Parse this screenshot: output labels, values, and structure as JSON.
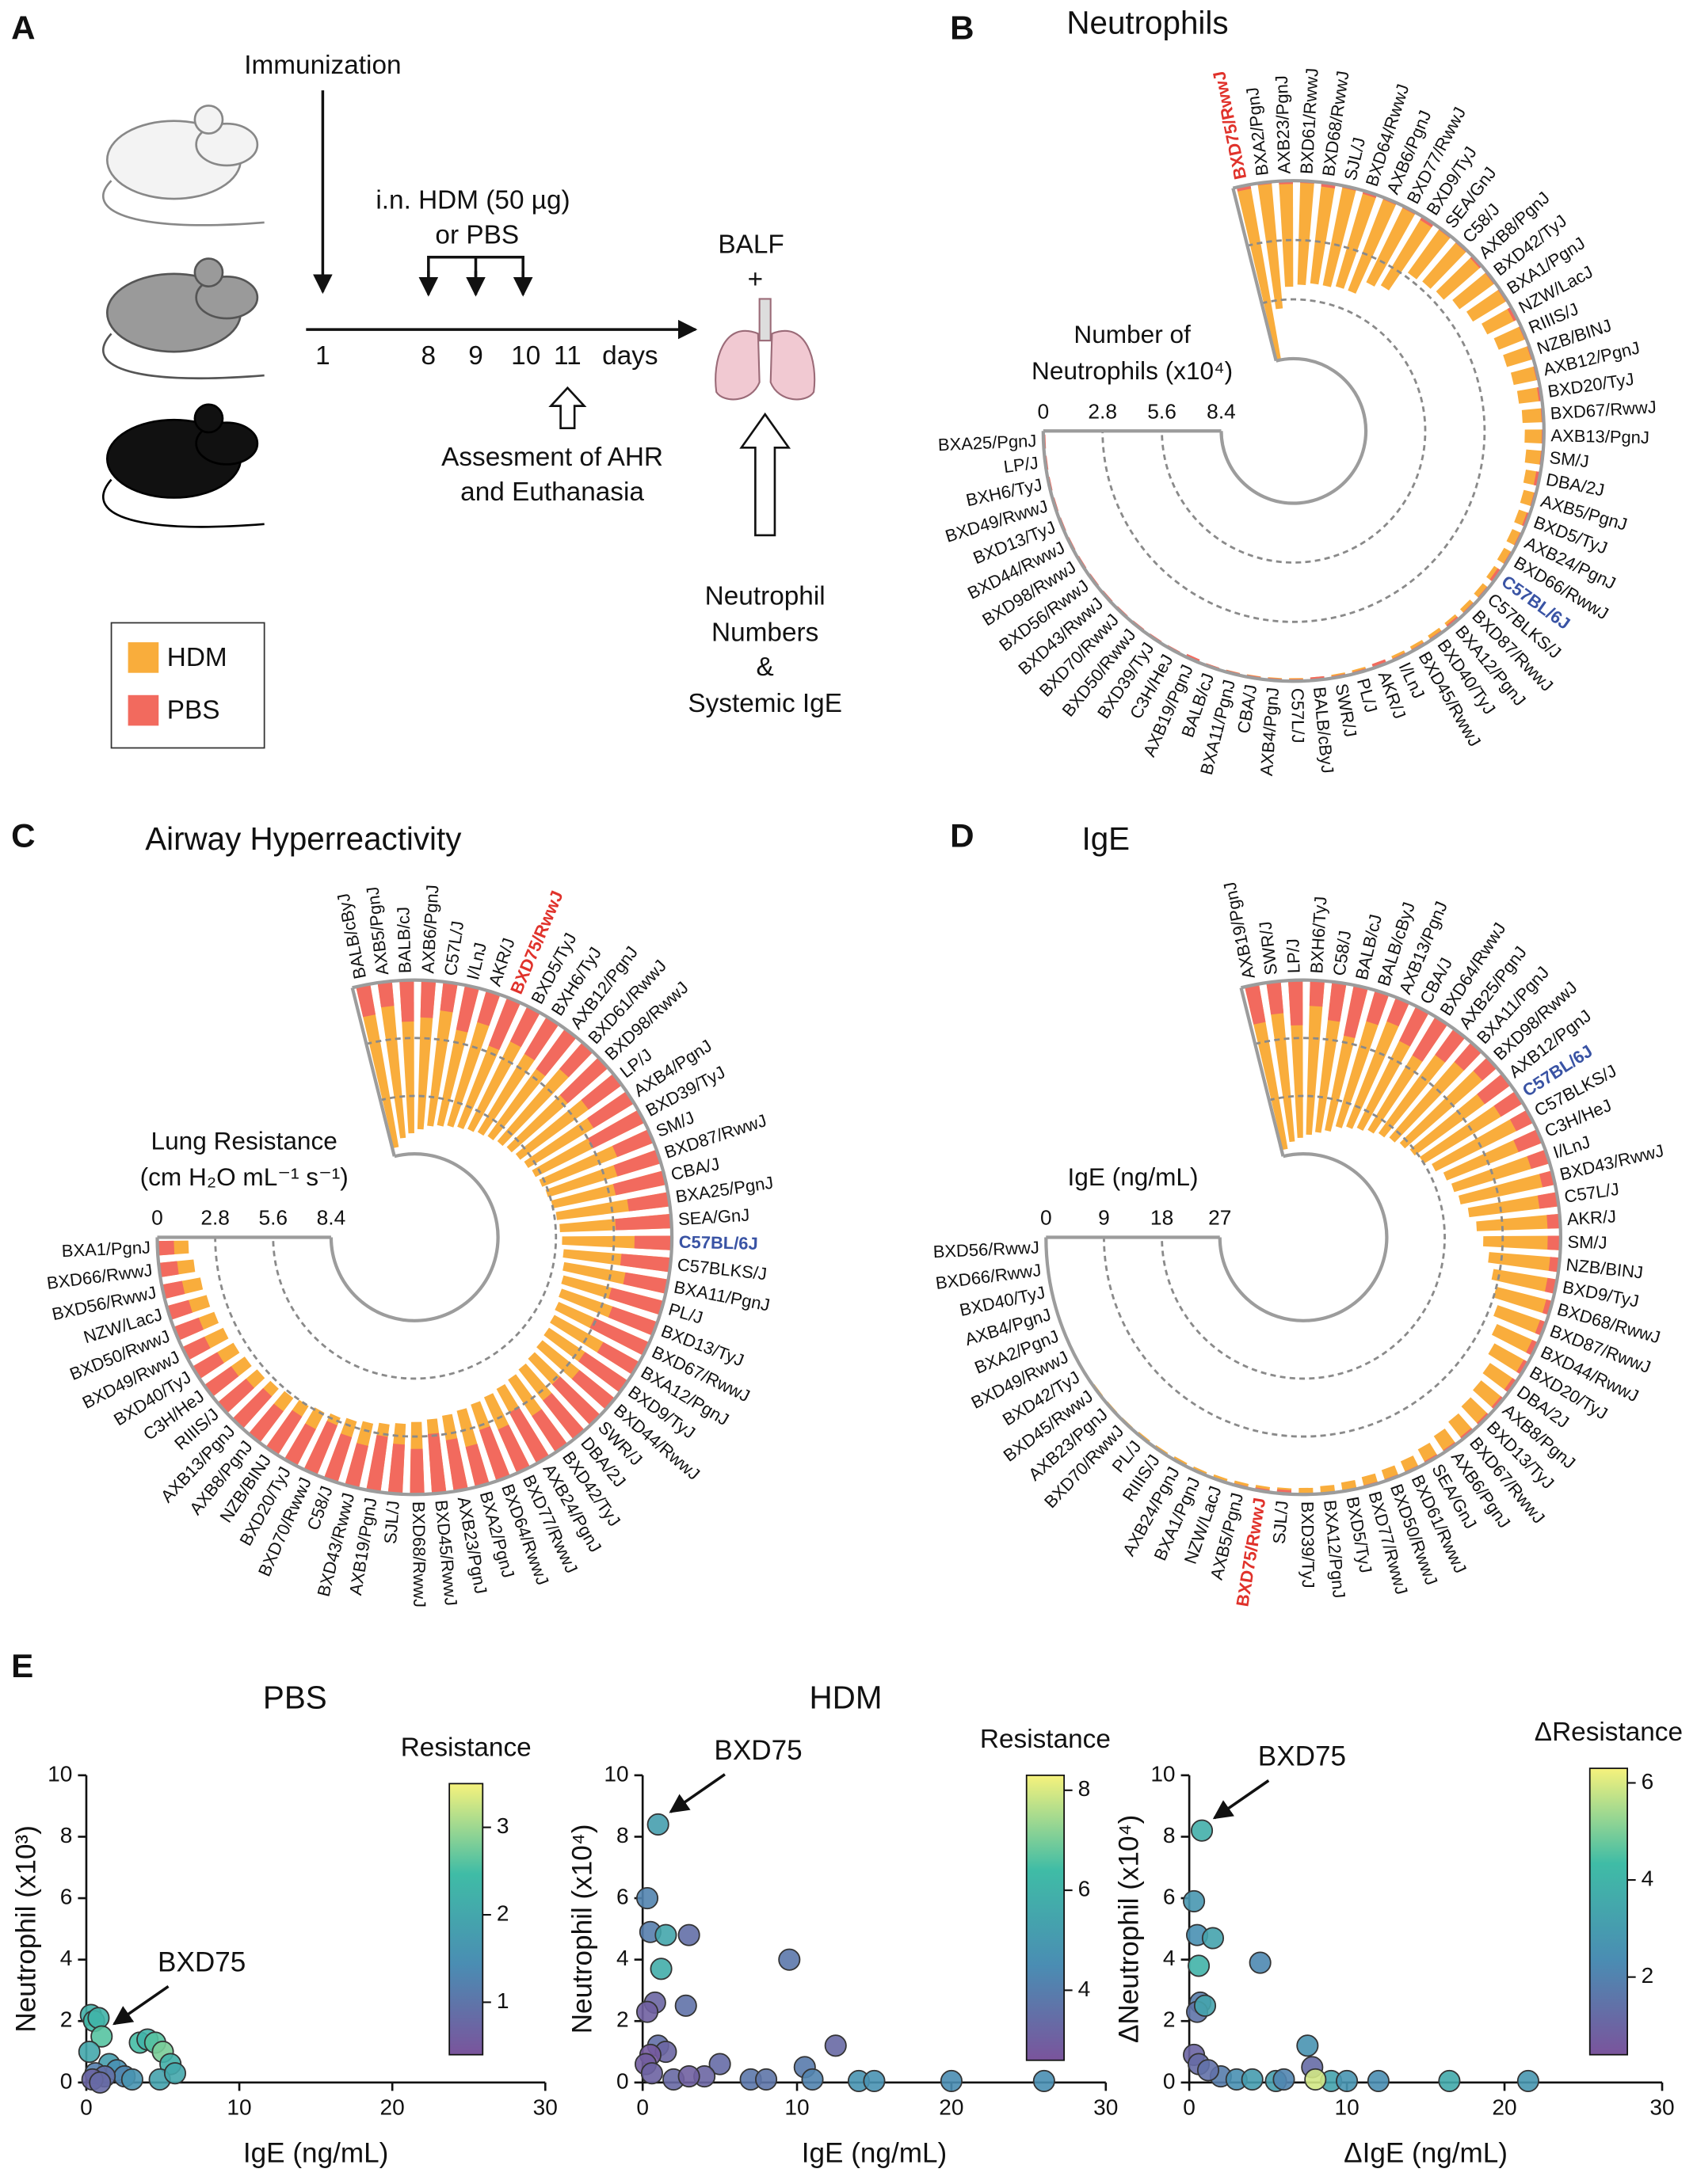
{
  "panel_a": {
    "letter": "A",
    "immunization": "Immunization",
    "treatment": [
      "i.n. HDM (50 µg)",
      "or PBS"
    ],
    "days": [
      "1",
      "8",
      "9",
      "10",
      "11"
    ],
    "days_unit": "days",
    "assessment": [
      "Assesment of AHR",
      "and Euthanasia"
    ],
    "balf": "BALF",
    "plus": "+",
    "readout": [
      "Neutrophil",
      "Numbers",
      "&",
      "Systemic IgE"
    ]
  },
  "legend": [
    {
      "name": "HDM",
      "color": "#f9ad3c"
    },
    {
      "name": "PBS",
      "color": "#f26a5e"
    }
  ],
  "colormap": [
    "#7a549c",
    "#4a8db3",
    "#3fbca6",
    "#f6f27c"
  ],
  "chart_data": [
    {
      "type": "radial_bar",
      "panel": "B",
      "title": "Neutrophils",
      "axis_title": [
        "Number of",
        "Neutrophils (x10⁴)"
      ],
      "categories": [
        "BXD75/RwwJ",
        "BXA2/PgnJ",
        "AXB23/PgnJ",
        "BXD61/RwwJ",
        "BXD68/RwwJ",
        "SJL/J",
        "BXD64/RwwJ",
        "AXB6/PgnJ",
        "BXD77/RwwJ",
        "BXD9/TyJ",
        "SEA/GnJ",
        "C58/J",
        "AXB8/PgnJ",
        "BXD42/TyJ",
        "BXA1/PgnJ",
        "NZW/LacJ",
        "RIIIS/J",
        "NZB/BINJ",
        "AXB12/PgnJ",
        "BXD20/TyJ",
        "BXD67/RwwJ",
        "AXB13/PgnJ",
        "SM/J",
        "DBA/2J",
        "AXB5/PgnJ",
        "BXD5/TyJ",
        "AXB24/PgnJ",
        "BXD66/RwwJ",
        "C57BL/6J",
        "C57BLKS/J",
        "BXD87/RwwJ",
        "BXA12/PgnJ",
        "BXD40/TyJ",
        "BXD45/RwwJ",
        "I/LnJ",
        "AKR/J",
        "PL/J",
        "SWR/J",
        "BALB/cByJ",
        "C57L/J",
        "AXB4/PgnJ",
        "CBA/J",
        "BXA11/PgnJ",
        "BALB/cJ",
        "AXB19/PgnJ",
        "C3H/HeJ",
        "BXD39/TyJ",
        "BXD50/RwwJ",
        "BXD70/RwwJ",
        "BXD43/RwwJ",
        "BXD56/RwwJ",
        "BXD98/RwwJ",
        "BXD44/RwwJ",
        "BXD13/TyJ",
        "BXD49/RwwJ",
        "BXH6/TyJ",
        "LP/J",
        "BXA25/PgnJ"
      ],
      "series": [
        {
          "values": [
            8.4,
            6.0,
            5.0,
            4.9,
            4.8,
            4.8,
            4.7,
            4.7,
            4.0,
            3.8,
            2.6,
            2.5,
            2.4,
            2.1,
            1.9,
            1.6,
            1.4,
            1.3,
            1.2,
            1.1,
            1.0,
            0.9,
            0.8,
            0.7,
            0.6,
            0.55,
            0.5,
            0.45,
            0.4,
            0.35,
            0.3,
            0.28,
            0.26,
            0.24,
            0.22,
            0.2,
            0.18,
            0.16,
            0.15,
            0.14,
            0.13,
            0.12,
            0.11,
            0.1,
            0.09,
            0.08,
            0.07,
            0.06,
            0.05,
            0.05,
            0.04,
            0.04,
            0.03,
            0.03,
            0.02,
            0.02,
            0.01,
            0.01
          ]
        },
        {
          "values": [
            0.2,
            0.1,
            0.15,
            0.1,
            0.2,
            0.1,
            0.15,
            0.1,
            0.1,
            0.2,
            0.1,
            0.1,
            0.15,
            0.1,
            0.1,
            0.2,
            0.1,
            0.1,
            0.1,
            0.15,
            0.1,
            0.1,
            0.1,
            0.2,
            0.1,
            0.15,
            0.1,
            0.1,
            0.2,
            0.1,
            0.1,
            0.15,
            0.1,
            0.1,
            0.1,
            0.2,
            0.1,
            0.1,
            0.15,
            0.1,
            0.1,
            0.1,
            0.1,
            0.1,
            0.15,
            0.1,
            0.1,
            0.1,
            0.1,
            0.1,
            0.1,
            0.1,
            0.1,
            0.1,
            0.1,
            0.1,
            0.1,
            0.1
          ]
        }
      ],
      "ylim": [
        0,
        8.4
      ],
      "yticks": [
        0,
        2.8,
        5.6,
        8.4
      ],
      "highlights": [
        {
          "index": 0,
          "color": "#e0322b"
        },
        {
          "index": 28,
          "color": "#3953a4"
        }
      ]
    },
    {
      "type": "radial_bar",
      "panel": "C",
      "title": "Airway Hyperreactivity",
      "axis_title": [
        "Lung Resistance",
        "(cm H₂O mL⁻¹ s⁻¹)"
      ],
      "categories": [
        "BALB/cByJ",
        "AXB5/PgnJ",
        "BALB/cJ",
        "AXB6/PgnJ",
        "C57L/J",
        "I/LnJ",
        "AKR/J",
        "BXD75/RwwJ",
        "BXD5/TyJ",
        "BXH6/TyJ",
        "AXB12/PgnJ",
        "BXD61/RwwJ",
        "BXD98/RwwJ",
        "LP/J",
        "AXB4/PgnJ",
        "BXD39/TyJ",
        "SM/J",
        "BXD87/RwwJ",
        "CBA/J",
        "BXA25/PgnJ",
        "SEA/GnJ",
        "C57BL/6J",
        "C57BLKS/J",
        "BXA11/PgnJ",
        "PL/J",
        "BXD13/TyJ",
        "BXD67/RwwJ",
        "BXA12/PgnJ",
        "BXD9/TyJ",
        "BXD44/RwwJ",
        "SWR/J",
        "DBA/2J",
        "BXD42/TyJ",
        "AXB24/PgnJ",
        "BXD77/RwwJ",
        "BXD64/RwwJ",
        "BXA2/PgnJ",
        "AXB23/PgnJ",
        "BXD45/RwwJ",
        "BXD68/RwwJ",
        "SJL/J",
        "AXB19/PgnJ",
        "BXD43/RwwJ",
        "C58/J",
        "BXD70/RwwJ",
        "BXD20/TyJ",
        "NZB/BINJ",
        "AXB8/PgnJ",
        "AXB13/PgnJ",
        "RIIIS/J",
        "C3H/HeJ",
        "BXD40/TyJ",
        "BXD49/RwwJ",
        "BXD50/RwwJ",
        "NZW/LacJ",
        "BXD56/RwwJ",
        "BXD66/RwwJ",
        "BXA1/PgnJ"
      ],
      "series": [
        {
          "values": [
            8.0,
            7.6,
            7.4,
            7.2,
            7.0,
            6.9,
            6.8,
            6.7,
            6.6,
            6.5,
            6.4,
            6.3,
            6.2,
            6.1,
            6.0,
            5.9,
            5.8,
            5.7,
            5.6,
            5.5,
            5.4,
            5.3,
            5.2,
            5.1,
            5.0,
            4.9,
            4.8,
            4.7,
            4.6,
            4.5,
            4.4,
            4.3,
            4.2,
            4.1,
            4.0,
            3.9,
            3.8,
            3.7,
            3.6,
            3.5,
            3.4,
            3.3,
            3.2,
            3.1,
            3.0,
            2.9,
            2.8,
            2.7,
            2.6,
            2.5,
            2.4,
            2.3,
            2.2,
            2.1,
            2.0,
            1.9,
            1.7,
            1.5
          ]
        },
        {
          "values": [
            1.5,
            1.2,
            2.0,
            1.8,
            1.4,
            2.2,
            1.6,
            2.5,
            1.9,
            2.1,
            2.4,
            1.7,
            2.6,
            2.0,
            2.3,
            2.8,
            1.9,
            2.2,
            2.5,
            2.0,
            2.7,
            1.8,
            2.4,
            2.1,
            2.6,
            2.3,
            2.9,
            2.0,
            2.5,
            2.2,
            2.7,
            2.4,
            2.1,
            2.8,
            2.3,
            2.6,
            2.0,
            2.5,
            2.9,
            2.2,
            2.4,
            2.7,
            2.1,
            2.3,
            2.6,
            2.0,
            2.2,
            1.9,
            2.1,
            1.8,
            1.6,
            1.4,
            1.2,
            1.3,
            1.1,
            1.0,
            0.9,
            0.8
          ]
        }
      ],
      "ylim": [
        0,
        8.4
      ],
      "yticks": [
        0,
        2.8,
        5.6,
        8.4
      ],
      "highlights": [
        {
          "index": 7,
          "color": "#e0322b"
        },
        {
          "index": 21,
          "color": "#3953a4"
        }
      ]
    },
    {
      "type": "radial_bar",
      "panel": "D",
      "title": "IgE",
      "axis_title": [
        "IgE (ng/mL)"
      ],
      "categories": [
        "AXB19/PgnJ",
        "SWR/J",
        "LP/J",
        "BXH6/TyJ",
        "C58/J",
        "BALB/cJ",
        "BALB/cByJ",
        "AXB13/PgnJ",
        "CBA/J",
        "BXD64/RwwJ",
        "AXB25/PgnJ",
        "BXA11/PgnJ",
        "BXD98/RwwJ",
        "AXB12/PgnJ",
        "C57BL/6J",
        "C57BLKS/J",
        "C3H/HeJ",
        "I/LnJ",
        "BXD43/RwwJ",
        "C57L/J",
        "AKR/J",
        "SM/J",
        "NZB/BINJ",
        "BXD9/TyJ",
        "BXD68/RwwJ",
        "BXD87/RwwJ",
        "BXD44/RwwJ",
        "BXD20/TyJ",
        "DBA/2J",
        "AXB8/PgnJ",
        "BXD13/TyJ",
        "BXD67/RwwJ",
        "AXB6/PgnJ",
        "SEA/GnJ",
        "BXD61/RwwJ",
        "BXD50/RwwJ",
        "BXD77/RwwJ",
        "BXD5/TyJ",
        "BXA12/PgnJ",
        "BXD39/TyJ",
        "SJL/J",
        "BXD75/RwwJ",
        "AXB5/PgnJ",
        "NZW/LacJ",
        "BXA1/PgnJ",
        "AXB24/PgnJ",
        "RIIIS/J",
        "PL/J",
        "BXD70/RwwJ",
        "AXB23/PgnJ",
        "BXD45/RwwJ",
        "BXD42/TyJ",
        "BXD49/RwwJ",
        "BXA2/PgnJ",
        "AXB4/PgnJ",
        "BXD40/TyJ",
        "BXD66/RwwJ",
        "BXD56/RwwJ"
      ],
      "series": [
        {
          "values": [
            26,
            25,
            24.5,
            24,
            23.5,
            23,
            22,
            21.5,
            21,
            20.5,
            20,
            19.5,
            19,
            18.5,
            18,
            17,
            16,
            15.5,
            15,
            14,
            13,
            12,
            11,
            10,
            9,
            8,
            7,
            6,
            5,
            4.5,
            4,
            3.5,
            3,
            2.5,
            2,
            1.8,
            1.6,
            1.4,
            1.2,
            1,
            0.9,
            0.8,
            0.7,
            0.6,
            0.5,
            0.5,
            0.4,
            0.4,
            0.3,
            0.3,
            0.3,
            0.2,
            0.2,
            0.2,
            0.1,
            0.1,
            0.1,
            0.1
          ]
        },
        {
          "values": [
            6,
            5,
            7,
            4,
            6,
            8,
            5,
            4,
            6,
            7,
            5,
            4,
            3,
            5,
            4,
            3,
            4,
            3,
            2,
            3,
            2,
            2,
            1.5,
            1.5,
            1,
            1,
            1,
            0.8,
            0.8,
            0.6,
            0.5,
            0.5,
            0.4,
            0.4,
            0.3,
            0.3,
            0.3,
            0.2,
            0.2,
            0.2,
            0.6,
            0.4,
            0.3,
            0.2,
            0.2,
            0.1,
            0.1,
            0.1,
            0.1,
            0.1,
            0.1,
            0.1,
            0.1,
            0.1,
            0.1,
            0.1,
            0.1,
            0.1
          ]
        }
      ],
      "ylim": [
        0,
        27
      ],
      "yticks": [
        0,
        9,
        18,
        27
      ],
      "highlights": [
        {
          "index": 14,
          "color": "#3953a4"
        },
        {
          "index": 41,
          "color": "#e0322b"
        }
      ]
    },
    {
      "type": "scatter",
      "panel": "E",
      "title": "PBS",
      "x": [
        0.3,
        0.5,
        0.8,
        1.0,
        0.2,
        1.5,
        2.0,
        0.6,
        3.5,
        4.0,
        4.5,
        5.0,
        5.5,
        2.5,
        3.0,
        1.2,
        0.4,
        4.8,
        5.8,
        0.9
      ],
      "values": [
        2.2,
        2.0,
        2.1,
        1.5,
        1.0,
        0.6,
        0.4,
        0.3,
        1.3,
        1.4,
        1.3,
        1.0,
        0.6,
        0.2,
        0.1,
        0.2,
        0.1,
        0.1,
        0.3,
        0.0
      ],
      "color_values": [
        2.2,
        2.4,
        2.3,
        2.6,
        2.0,
        1.8,
        1.5,
        1.2,
        2.5,
        2.3,
        2.6,
        2.8,
        2.2,
        1.3,
        1.6,
        0.9,
        0.7,
        1.9,
        2.0,
        0.8
      ],
      "xlim": [
        0,
        30
      ],
      "xticks": [
        0,
        10,
        20,
        30
      ],
      "ylim": [
        0,
        10
      ],
      "yticks": [
        0,
        2,
        4,
        6,
        8,
        10
      ],
      "xlabel": "IgE (ng/mL)",
      "ylabel": "Neutrophil (x10³)",
      "colorbar": {
        "title": "Resistance",
        "lim": [
          0.4,
          3.5
        ],
        "ticks": [
          1,
          2,
          3
        ]
      },
      "annotation": {
        "text": "BXD75",
        "point": 3
      }
    },
    {
      "type": "scatter",
      "title": "HDM",
      "x": [
        1.0,
        0.3,
        0.5,
        1.5,
        1.2,
        3.0,
        9.5,
        0.8,
        0.3,
        2.8,
        12.5,
        1.0,
        1.5,
        5.0,
        10.5,
        20,
        26,
        14,
        15,
        7,
        4,
        0.5,
        0.2,
        2,
        3,
        8,
        11,
        0.6
      ],
      "values": [
        8.4,
        6.0,
        4.9,
        4.8,
        3.7,
        4.8,
        4.0,
        2.6,
        2.3,
        2.5,
        1.2,
        1.2,
        1.0,
        0.6,
        0.5,
        0.05,
        0.05,
        0.05,
        0.05,
        0.1,
        0.2,
        0.9,
        0.6,
        0.1,
        0.2,
        0.1,
        0.1,
        0.3
      ],
      "color_values": [
        5.2,
        4.2,
        4.0,
        5.5,
        5.8,
        3.5,
        3.8,
        3.2,
        3.0,
        3.6,
        3.3,
        3.5,
        3.2,
        3.4,
        3.9,
        4.5,
        4.6,
        4.8,
        4.7,
        3.8,
        3.2,
        2.8,
        2.9,
        3.3,
        3.0,
        3.7,
        4.2,
        3.1
      ],
      "xlim": [
        0,
        30
      ],
      "xticks": [
        0,
        10,
        20,
        30
      ],
      "ylim": [
        0,
        10
      ],
      "yticks": [
        0,
        2,
        4,
        6,
        8,
        10
      ],
      "xlabel": "IgE (ng/mL)",
      "ylabel": "Neutrophil (x10⁴)",
      "colorbar": {
        "title": "Resistance",
        "lim": [
          2.6,
          8.3
        ],
        "ticks": [
          4,
          6,
          8
        ]
      },
      "annotation": {
        "text": "BXD75",
        "point": 0
      }
    },
    {
      "type": "scatter",
      "x": [
        0.8,
        0.3,
        0.5,
        1.5,
        0.6,
        4.5,
        7.5,
        0.7,
        0.5,
        1.0,
        7.8,
        16.5,
        21.5,
        9,
        12,
        5.5,
        8,
        0.3,
        0.6,
        2,
        3,
        4,
        6,
        1.2,
        10
      ],
      "values": [
        8.2,
        5.9,
        4.8,
        4.7,
        3.8,
        3.9,
        1.2,
        2.6,
        2.3,
        2.5,
        0.5,
        0.05,
        0.05,
        0.05,
        0.05,
        0.05,
        0.1,
        0.9,
        0.6,
        0.2,
        0.1,
        0.1,
        0.1,
        0.4,
        0.05
      ],
      "color_values": [
        3.8,
        2.8,
        2.5,
        3.3,
        3.9,
        2.2,
        2.6,
        1.8,
        1.5,
        3.3,
        1.2,
        3.6,
        2.8,
        3.3,
        2.4,
        3.1,
        5.9,
        1.0,
        1.2,
        1.8,
        2.5,
        3.0,
        2.1,
        1.4,
        2.7
      ],
      "xlim": [
        0,
        30
      ],
      "xticks": [
        0,
        10,
        20,
        30
      ],
      "ylim": [
        0,
        10
      ],
      "yticks": [
        0,
        2,
        4,
        6,
        8,
        10
      ],
      "xlabel": "ΔIgE (ng/mL)",
      "ylabel": "ΔNeutrophil (x10⁴)",
      "colorbar": {
        "title": "ΔResistance",
        "lim": [
          0.4,
          6.3
        ],
        "ticks": [
          2,
          4,
          6
        ]
      },
      "annotation": {
        "text": "BXD75",
        "point": 0
      }
    }
  ]
}
